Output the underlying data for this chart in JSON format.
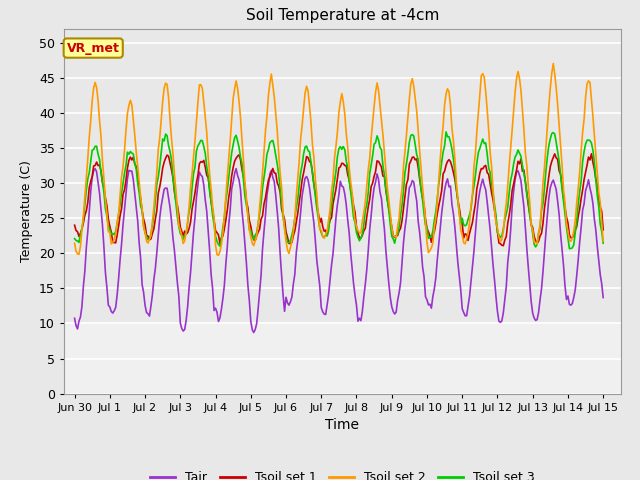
{
  "title": "Soil Temperature at -4cm",
  "xlabel": "Time",
  "ylabel": "Temperature (C)",
  "ylim": [
    0,
    52
  ],
  "yticks": [
    0,
    5,
    10,
    15,
    20,
    25,
    30,
    35,
    40,
    45,
    50
  ],
  "fig_bg_color": "#e8e8e8",
  "plot_bg_color": "#e8e8e8",
  "below10_bg": "#f5f5f5",
  "grid_color": "#ffffff",
  "colors": {
    "Tair": "#9933cc",
    "Tsoil1": "#cc0000",
    "Tsoil2": "#ff9900",
    "Tsoil3": "#00cc00"
  },
  "annotation": "VR_met",
  "annotation_color": "#cc0000",
  "annotation_bg": "#ffff99",
  "annotation_edge": "#aa8800"
}
